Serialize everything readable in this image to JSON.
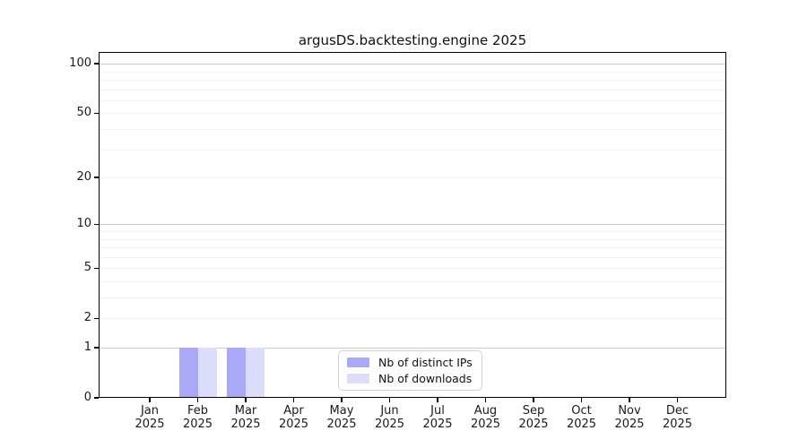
{
  "chart_data": {
    "type": "bar",
    "title": "argusDS.backtesting.engine 2025",
    "categories": [
      {
        "month": "Jan",
        "year": "2025"
      },
      {
        "month": "Feb",
        "year": "2025"
      },
      {
        "month": "Mar",
        "year": "2025"
      },
      {
        "month": "Apr",
        "year": "2025"
      },
      {
        "month": "May",
        "year": "2025"
      },
      {
        "month": "Jun",
        "year": "2025"
      },
      {
        "month": "Jul",
        "year": "2025"
      },
      {
        "month": "Aug",
        "year": "2025"
      },
      {
        "month": "Sep",
        "year": "2025"
      },
      {
        "month": "Oct",
        "year": "2025"
      },
      {
        "month": "Nov",
        "year": "2025"
      },
      {
        "month": "Dec",
        "year": "2025"
      }
    ],
    "series": [
      {
        "name": "Nb of distinct IPs",
        "color": "#a9a9f8",
        "values": [
          0,
          1,
          1,
          0,
          0,
          0,
          0,
          0,
          0,
          0,
          0,
          0
        ]
      },
      {
        "name": "Nb of downloads",
        "color": "#dcdcfb",
        "values": [
          0,
          1,
          1,
          0,
          0,
          0,
          0,
          0,
          0,
          0,
          0,
          0
        ]
      }
    ],
    "y_axis": {
      "scale": "log1p",
      "min": 0,
      "max": 118,
      "tick_labels": [
        0,
        1,
        2,
        5,
        10,
        20,
        50,
        100
      ],
      "major_gridlines": [
        1,
        10,
        100
      ],
      "minor_gridlines": [
        2,
        3,
        4,
        5,
        6,
        7,
        8,
        9,
        20,
        30,
        40,
        50,
        60,
        70,
        80,
        90
      ]
    },
    "legend": {
      "position": "lower-center",
      "entries": [
        "Nb of distinct IPs",
        "Nb of downloads"
      ]
    },
    "colors": {
      "grid_major": "#c9c9c9",
      "grid_minor": "#f0f0f0",
      "axis": "#000000",
      "text": "#1a1a1a",
      "background": "#ffffff"
    },
    "grid": "on",
    "xlabel": "",
    "ylabel": ""
  }
}
